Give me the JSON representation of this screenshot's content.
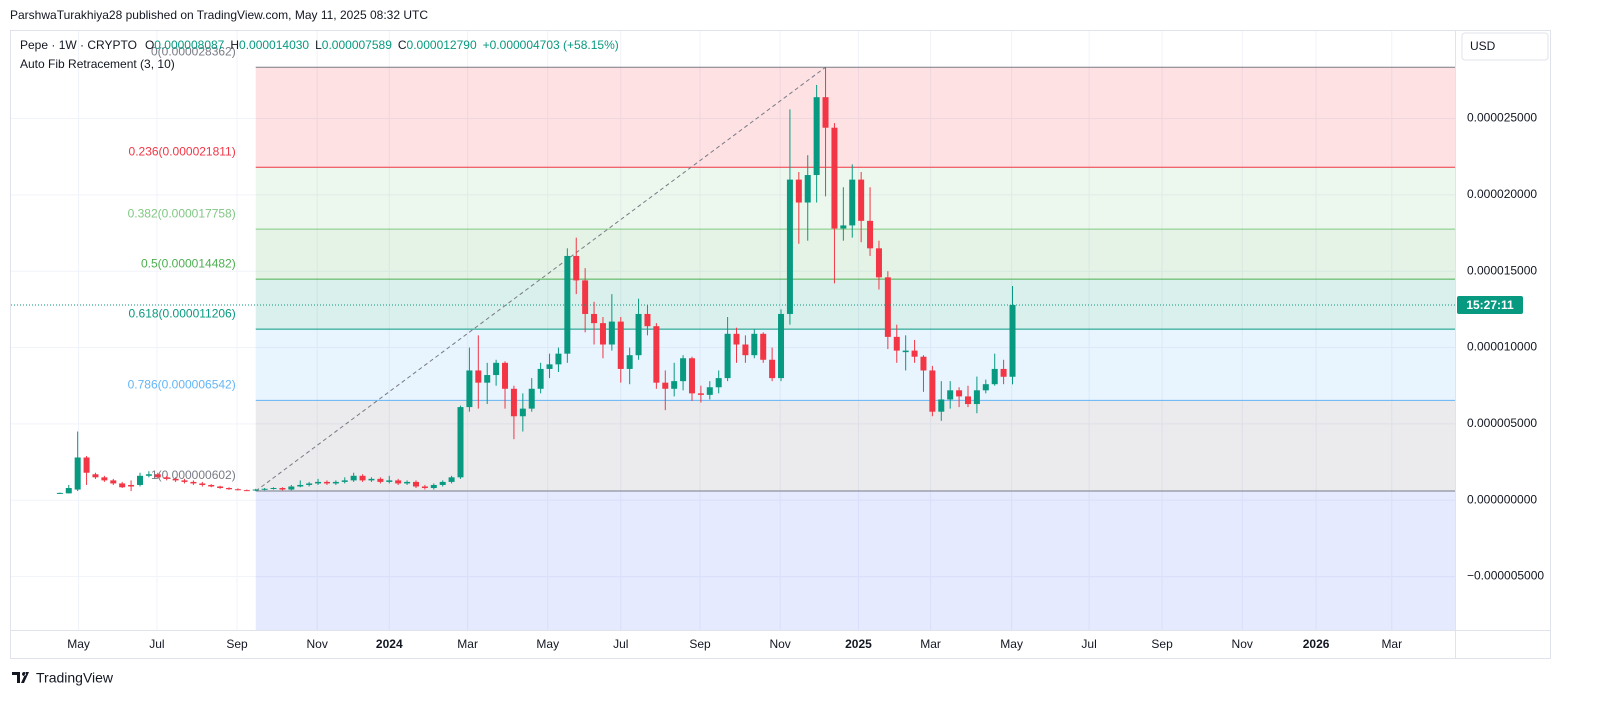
{
  "header": {
    "attribution": "ParshwaTurakhiya28 published on TradingView.com, May 11, 2025 08:32 UTC"
  },
  "footer": {
    "logo_text": "TradingView"
  },
  "chart_data": {
    "type": "candlestick",
    "symbol": "Pepe · 1W · CRYPTO",
    "ohlc_legend": [
      {
        "key": "O",
        "value": "0.000008087"
      },
      {
        "key": "H",
        "value": "0.000014030"
      },
      {
        "key": "L",
        "value": "0.000007589"
      },
      {
        "key": "C",
        "value": "0.000012790"
      }
    ],
    "change": "+0.000004703 (+58.15%)",
    "indicator": "Auto Fib Retracement (3, 10)",
    "currency": "USD",
    "countdown": "15:27:11",
    "up_color": "#089981",
    "down_color": "#f23645",
    "open": [
      4.5e-07,
      4.5e-07,
      7e-07,
      2.8e-06,
      1.7e-06,
      1.5e-06,
      1.3e-06,
      1.1e-06,
      1e-06,
      1e-06,
      1.6e-06,
      1.7e-06,
      1.5e-06,
      1.4e-06,
      1.3e-06,
      1.2e-06,
      1.1e-06,
      1e-06,
      9e-07,
      8e-07,
      7.2e-07,
      6.6e-07,
      6.4e-07,
      7e-07,
      7.5e-07,
      8e-07,
      7e-07,
      9e-07,
      1e-06,
      1.1e-06,
      1.2e-06,
      1.1e-06,
      1.2e-06,
      1.3e-06,
      1.6e-06,
      1.3e-06,
      1.4e-06,
      1.2e-06,
      1.3e-06,
      1.1e-06,
      1.2e-06,
      9e-07,
      8e-07,
      1e-06,
      1.2e-06,
      1.5e-06,
      6.1e-06,
      8.5e-06,
      7.7e-06,
      8.2e-06,
      9e-06,
      7.3e-06,
      5.5e-06,
      6e-06,
      7.3e-06,
      8.6e-06,
      8.9e-06,
      9.6e-06,
      1.6e-05,
      1.44e-05,
      1.22e-05,
      1.16e-05,
      1.02e-05,
      1.17e-05,
      8.6e-06,
      9.5e-06,
      1.22e-05,
      1.14e-05,
      7.7e-06,
      7.3e-06,
      7.8e-06,
      9.3e-06,
      7e-06,
      6.9e-06,
      7.4e-06,
      8e-06,
      1.09e-05,
      1.02e-05,
      9.5e-06,
      1.09e-05,
      9.2e-06,
      8e-06,
      1.22e-05,
      2.1e-05,
      1.95e-05,
      2.13e-05,
      2.64e-05,
      2.44e-05,
      1.78e-05,
      1.8e-05,
      2.1e-05,
      1.83e-05,
      1.65e-05,
      1.46e-05,
      1.07e-05,
      9.7e-06,
      9.8e-06,
      9.4e-06,
      8.5e-06,
      5.8e-06,
      6.6e-06,
      7.2e-06,
      6.8e-06,
      6.3e-06,
      7.2e-06,
      7.6e-06,
      8.6e-06,
      8.087e-06
    ],
    "high": [
      5e-07,
      1e-06,
      4.5e-06,
      2.9e-06,
      1.8e-06,
      1.6e-06,
      1.4e-06,
      1.2e-06,
      1.3e-06,
      1.8e-06,
      1.9e-06,
      1.8e-06,
      1.6e-06,
      1.5e-06,
      1.4e-06,
      1.3e-06,
      1.2e-06,
      1.05e-06,
      9.5e-07,
      8.5e-07,
      7.8e-07,
      7e-07,
      7.5e-07,
      8e-07,
      8.5e-07,
      8.5e-07,
      1e-06,
      1.3e-06,
      1.2e-06,
      1.4e-06,
      1.3e-06,
      1.3e-06,
      1.5e-06,
      1.8e-06,
      1.7e-06,
      1.5e-06,
      1.5e-06,
      1.6e-06,
      1.4e-06,
      1.3e-06,
      1.3e-06,
      1e-06,
      1.1e-06,
      1.3e-06,
      1.6e-06,
      6.2e-06,
      1e-05,
      1.08e-05,
      9e-06,
      9.2e-06,
      9.1e-06,
      7.5e-06,
      7e-06,
      8e-06,
      9e-06,
      9.6e-06,
      1e-05,
      1.65e-05,
      1.72e-05,
      1.52e-05,
      1.3e-05,
      1.2e-05,
      1.35e-05,
      1.2e-05,
      1e-05,
      1.32e-05,
      1.28e-05,
      1.16e-05,
      8.5e-06,
      9e-06,
      9.5e-06,
      9.4e-06,
      7.5e-06,
      7.8e-06,
      8.5e-06,
      1.2e-05,
      1.13e-05,
      1.08e-05,
      1.12e-05,
      1.1e-05,
      1e-05,
      1.25e-05,
      2.56e-05,
      2.15e-05,
      2.26e-05,
      2.72e-05,
      2.8362e-05,
      2.47e-05,
      2.05e-05,
      2.2e-05,
      2.15e-05,
      2.05e-05,
      1.7e-05,
      1.5e-05,
      1.15e-05,
      1.08e-05,
      1.05e-05,
      9.5e-06,
      8.8e-06,
      7.8e-06,
      7.8e-06,
      7.4e-06,
      7.5e-06,
      8.1e-06,
      7.9e-06,
      9.6e-06,
      9.2e-06,
      1.403e-05
    ],
    "low": [
      4.2e-07,
      4.4e-07,
      6e-07,
      1e-06,
      1.4e-06,
      1.2e-06,
      1e-06,
      8e-07,
      6e-07,
      9e-07,
      1.5e-06,
      1.4e-06,
      1.3e-06,
      1.2e-06,
      1.1e-06,
      1e-06,
      9e-07,
      8.5e-07,
      7.5e-07,
      6.8e-07,
      6.4e-07,
      6.3e-07,
      6.02e-07,
      6.5e-07,
      7e-07,
      6.5e-07,
      6.5e-07,
      8.5e-07,
      9e-07,
      1e-06,
      1e-06,
      1e-06,
      1.1e-06,
      1.2e-06,
      1.2e-06,
      1.2e-06,
      1.1e-06,
      1.1e-06,
      1e-06,
      1e-06,
      8e-07,
      7e-07,
      7e-07,
      9e-07,
      1.1e-06,
      1.4e-06,
      5.8e-06,
      6e-06,
      6.3e-06,
      7.5e-06,
      6e-06,
      4e-06,
      4.5e-06,
      5.8e-06,
      7e-06,
      8e-06,
      8.4e-06,
      9e-06,
      1.35e-05,
      1.1e-05,
      1.02e-05,
      9.3e-06,
      9.8e-06,
      7.7e-06,
      7.6e-06,
      9.2e-06,
      1.08e-05,
      7.3e-06,
      5.9e-06,
      6.8e-06,
      7.2e-06,
      6.5e-06,
      6.4e-06,
      6.6e-06,
      7e-06,
      7.8e-06,
      9e-06,
      9e-06,
      9.3e-06,
      9e-06,
      7.8e-06,
      7.8e-06,
      1.15e-05,
      1.68e-05,
      1.7e-05,
      1.95e-05,
      1.99e-05,
      1.42e-05,
      1.7e-05,
      1.72e-05,
      1.69e-05,
      1.6e-05,
      1.38e-05,
      9.9e-06,
      9e-06,
      8.5e-06,
      9e-06,
      7.1e-06,
      5.5e-06,
      5.2e-06,
      6e-06,
      6.1e-06,
      6.1e-06,
      5.7e-06,
      7e-06,
      7.5e-06,
      7.6e-06,
      7.589e-06
    ],
    "close": [
      4.8e-07,
      8e-07,
      2.8e-06,
      1.8e-06,
      1.5e-06,
      1.3e-06,
      1.1e-06,
      8.5e-07,
      9e-07,
      1.6e-06,
      1.7e-06,
      1.5e-06,
      1.4e-06,
      1.3e-06,
      1.2e-06,
      1.1e-06,
      1e-06,
      9e-07,
      8e-07,
      7.2e-07,
      6.6e-07,
      6.4e-07,
      7e-07,
      7.5e-07,
      8e-07,
      7e-07,
      9e-07,
      1e-06,
      1.1e-06,
      1.2e-06,
      1.1e-06,
      1.2e-06,
      1.3e-06,
      1.6e-06,
      1.3e-06,
      1.4e-06,
      1.2e-06,
      1.3e-06,
      1.1e-06,
      1.2e-06,
      9e-07,
      8e-07,
      1e-06,
      1.2e-06,
      1.5e-06,
      6.1e-06,
      8.5e-06,
      7.7e-06,
      8.2e-06,
      9e-06,
      7.3e-06,
      5.5e-06,
      6e-06,
      7.3e-06,
      8.6e-06,
      8.9e-06,
      9.6e-06,
      1.6e-05,
      1.44e-05,
      1.22e-05,
      1.16e-05,
      1.02e-05,
      1.17e-05,
      8.6e-06,
      9.5e-06,
      1.22e-05,
      1.14e-05,
      7.7e-06,
      7.3e-06,
      7.8e-06,
      9.3e-06,
      7e-06,
      6.9e-06,
      7.4e-06,
      8e-06,
      1.09e-05,
      1.02e-05,
      9.5e-06,
      1.09e-05,
      9.2e-06,
      8e-06,
      1.22e-05,
      2.1e-05,
      1.95e-05,
      2.13e-05,
      2.64e-05,
      2.44e-05,
      1.78e-05,
      1.8e-05,
      2.1e-05,
      1.83e-05,
      1.65e-05,
      1.46e-05,
      1.07e-05,
      9.8e-06,
      9.8e-06,
      9.4e-06,
      8.5e-06,
      5.8e-06,
      6.6e-06,
      7.2e-06,
      6.8e-06,
      6.3e-06,
      7.2e-06,
      7.6e-06,
      8.6e-06,
      8.087e-06,
      1.279e-05
    ],
    "fib_levels": [
      {
        "label": "0(0.000028362)",
        "value": 2.8362e-05,
        "color": "#787b86"
      },
      {
        "label": "0.236(0.000021811)",
        "value": 2.1811e-05,
        "color": "#f23645"
      },
      {
        "label": "0.382(0.000017758)",
        "value": 1.7758e-05,
        "color": "#81c784"
      },
      {
        "label": "0.5(0.000014482)",
        "value": 1.4482e-05,
        "color": "#4caf50"
      },
      {
        "label": "0.618(0.000011206)",
        "value": 1.1206e-05,
        "color": "#089981"
      },
      {
        "label": "0.786(0.000006542)",
        "value": 6.542e-06,
        "color": "#64b5f6"
      },
      {
        "label": "1(0.000000602)",
        "value": 6.02e-07,
        "color": "#787b86"
      }
    ],
    "xlim": [
      -5.6,
      156.7
    ],
    "xticks": [
      {
        "value": 2.1,
        "label": "May"
      },
      {
        "value": 10.9,
        "label": "Jul"
      },
      {
        "value": 19.9,
        "label": "Sep"
      },
      {
        "value": 28.9,
        "label": "Nov"
      },
      {
        "value": 37.0,
        "label": "2024"
      },
      {
        "value": 45.8,
        "label": "Mar"
      },
      {
        "value": 54.8,
        "label": "May"
      },
      {
        "value": 63.0,
        "label": "Jul"
      },
      {
        "value": 71.9,
        "label": "Sep"
      },
      {
        "value": 80.9,
        "label": "Nov"
      },
      {
        "value": 89.7,
        "label": "2025"
      },
      {
        "value": 97.8,
        "label": "Mar"
      },
      {
        "value": 106.9,
        "label": "May"
      },
      {
        "value": 115.6,
        "label": "Jul"
      },
      {
        "value": 123.8,
        "label": "Sep"
      },
      {
        "value": 132.8,
        "label": "Nov"
      },
      {
        "value": 141.1,
        "label": "2026"
      },
      {
        "value": 149.6,
        "label": "Mar"
      }
    ],
    "ylim": [
      -8.5e-06,
      3.08e-05
    ],
    "yticks": [
      {
        "value": 2.5e-05,
        "label": "0.000025000"
      },
      {
        "value": 2e-05,
        "label": "0.000020000"
      },
      {
        "value": 1.5e-05,
        "label": "0.000015000"
      },
      {
        "value": 1e-05,
        "label": "0.000010000"
      },
      {
        "value": 5e-06,
        "label": "0.000005000"
      },
      {
        "value": 0,
        "label": "0.000000000"
      },
      {
        "value": -5e-06,
        "label": "−0.000005000"
      }
    ],
    "grid": true
  }
}
